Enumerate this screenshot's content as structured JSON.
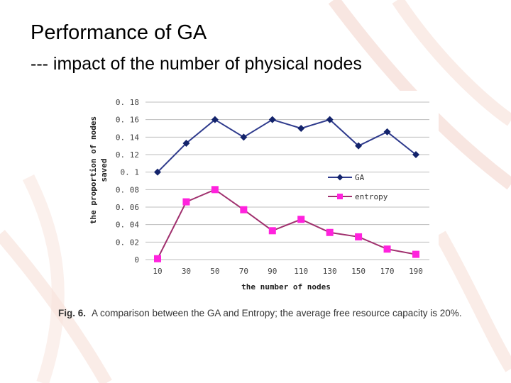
{
  "slide": {
    "title": "Performance of GA",
    "subtitle": "--- impact of the number of physical nodes"
  },
  "caption": {
    "label": "Fig. 6.",
    "text": "A comparison between the GA and Entropy; the average free resource capacity is 20%."
  },
  "colors": {
    "ga": "#2e3a8c",
    "ga_marker": "#13236b",
    "entropy": "#a0306e",
    "entropy_marker": "#ff22dd",
    "grid": "#bdbdbd",
    "decoration": "#f3d2c8"
  },
  "chart_data": {
    "type": "line",
    "x": [
      10,
      30,
      50,
      70,
      90,
      110,
      130,
      150,
      170,
      190
    ],
    "x_tick_labels": [
      "10",
      "30",
      "50",
      "70",
      "90",
      "110",
      "130",
      "150",
      "170",
      "190"
    ],
    "y_ticks": [
      0,
      0.02,
      0.04,
      0.06,
      0.08,
      0.1,
      0.12,
      0.14,
      0.16,
      0.18
    ],
    "y_tick_labels": [
      "0",
      "0. 02",
      "0. 04",
      "0. 06",
      "0. 08",
      "0. 1",
      "0. 12",
      "0. 14",
      "0. 16",
      "0. 18"
    ],
    "ylim": [
      0,
      0.18
    ],
    "xlabel": "the number of nodes",
    "ylabel_line1": "the proportion of nodes",
    "ylabel_line2": "saved",
    "grid": "horizontal",
    "legend_position": "center-right",
    "series": [
      {
        "name": "GA",
        "marker": "diamond",
        "values": [
          0.1,
          0.133,
          0.16,
          0.14,
          0.16,
          0.15,
          0.16,
          0.13,
          0.146,
          0.12
        ]
      },
      {
        "name": "entropy",
        "marker": "square",
        "values": [
          0.001,
          0.066,
          0.08,
          0.057,
          0.033,
          0.046,
          0.031,
          0.026,
          0.012,
          0.006
        ]
      }
    ]
  }
}
